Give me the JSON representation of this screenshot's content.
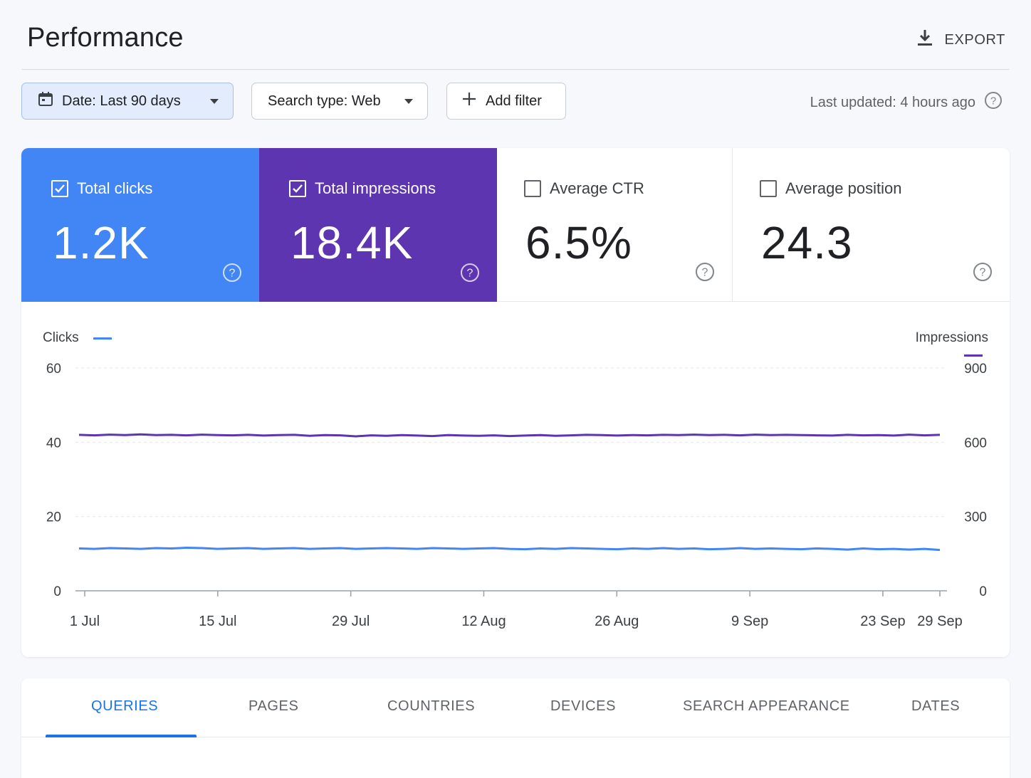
{
  "header": {
    "title": "Performance",
    "export_label": "EXPORT",
    "export_icon": "download-icon"
  },
  "toolbar": {
    "date_label": "Date: Last 90 days",
    "search_type_label": "Search type: Web",
    "add_filter_label": "Add filter",
    "last_updated": "Last updated: 4 hours ago"
  },
  "metrics": [
    {
      "label": "Total clicks",
      "value": "1.2K",
      "checked": true,
      "color": "#4285f4"
    },
    {
      "label": "Total impressions",
      "value": "18.4K",
      "checked": true,
      "color": "#5e35b1"
    },
    {
      "label": "Average CTR",
      "value": "6.5%",
      "checked": false
    },
    {
      "label": "Average position",
      "value": "24.3",
      "checked": false
    }
  ],
  "chart_data": {
    "type": "line",
    "xlabel": "",
    "x_ticks": [
      "1 Jul",
      "15 Jul",
      "29 Jul",
      "12 Aug",
      "26 Aug",
      "9 Sep",
      "23 Sep",
      "29 Sep"
    ],
    "y_left": {
      "label": "Clicks",
      "ticks": [
        60,
        40,
        20,
        0
      ],
      "lim": [
        0,
        60
      ]
    },
    "y_right": {
      "label": "Impressions",
      "ticks": [
        900,
        600,
        300,
        0
      ],
      "lim": [
        0,
        900
      ]
    },
    "grid": true,
    "series": [
      {
        "name": "Clicks",
        "axis": "left",
        "color": "#4285f4",
        "values": [
          11.4,
          11.3,
          11.5,
          11.4,
          11.3,
          11.5,
          11.4,
          11.6,
          11.5,
          11.3,
          11.4,
          11.5,
          11.3,
          11.4,
          11.5,
          11.3,
          11.4,
          11.5,
          11.3,
          11.4,
          11.5,
          11.4,
          11.3,
          11.5,
          11.4,
          11.3,
          11.4,
          11.5,
          11.3,
          11.2,
          11.4,
          11.3,
          11.5,
          11.4,
          11.3,
          11.2,
          11.4,
          11.3,
          11.5,
          11.3,
          11.4,
          11.2,
          11.3,
          11.5,
          11.3,
          11.4,
          11.3,
          11.2,
          11.4,
          11.3,
          11.1,
          11.4,
          11.2,
          11.3,
          11.1,
          11.3,
          11.0
        ]
      },
      {
        "name": "Impressions",
        "axis": "right",
        "color": "#5e35b1",
        "values": [
          630,
          628,
          631,
          629,
          632,
          629,
          630,
          628,
          631,
          629,
          628,
          630,
          627,
          629,
          630,
          626,
          629,
          628,
          624,
          628,
          626,
          629,
          627,
          625,
          629,
          627,
          626,
          628,
          625,
          627,
          629,
          626,
          628,
          630,
          629,
          627,
          629,
          628,
          630,
          629,
          631,
          629,
          630,
          628,
          631,
          629,
          630,
          629,
          628,
          627,
          630,
          628,
          629,
          627,
          631,
          628,
          630
        ]
      }
    ]
  },
  "tabs": [
    {
      "label": "QUERIES",
      "active": true
    },
    {
      "label": "PAGES"
    },
    {
      "label": "COUNTRIES"
    },
    {
      "label": "DEVICES"
    },
    {
      "label": "SEARCH APPEARANCE"
    },
    {
      "label": "DATES"
    }
  ]
}
